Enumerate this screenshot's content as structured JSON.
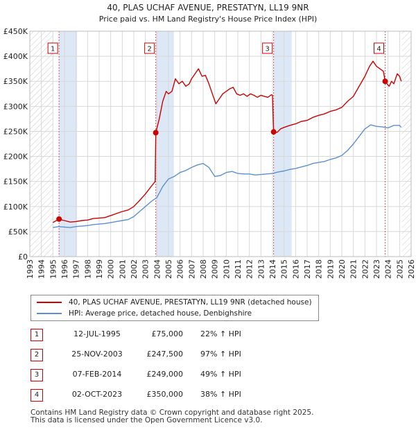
{
  "chart_data": {
    "type": "line",
    "title": "40, PLAS UCHAF AVENUE, PRESTATYN, LL19 9NR",
    "subtitle": "Price paid vs. HM Land Registry's House Price Index (HPI)",
    "xlim": [
      1993,
      2026
    ],
    "ylim": [
      0,
      450000
    ],
    "x_ticks": [
      1993,
      1994,
      1995,
      1996,
      1997,
      1998,
      1999,
      2000,
      2001,
      2002,
      2003,
      2004,
      2005,
      2006,
      2007,
      2008,
      2009,
      2010,
      2011,
      2012,
      2013,
      2014,
      2015,
      2016,
      2017,
      2018,
      2019,
      2020,
      2021,
      2022,
      2023,
      2024,
      2025,
      2026
    ],
    "y_ticks": [
      {
        "value": 0,
        "label": "£0"
      },
      {
        "value": 50000,
        "label": "£50K"
      },
      {
        "value": 100000,
        "label": "£100K"
      },
      {
        "value": 150000,
        "label": "£150K"
      },
      {
        "value": 200000,
        "label": "£200K"
      },
      {
        "value": 250000,
        "label": "£250K"
      },
      {
        "value": 300000,
        "label": "£300K"
      },
      {
        "value": 350000,
        "label": "£350K"
      },
      {
        "value": 400000,
        "label": "£400K"
      },
      {
        "value": 450000,
        "label": "£450K"
      }
    ],
    "data_start": 1995.0,
    "data_end": 2025.2,
    "series": [
      {
        "name": "40, PLAS UCHAF AVENUE, PRESTATYN, LL19 9NR (detached house)",
        "color": "#cc0000",
        "points": [
          [
            1995.0,
            68000
          ],
          [
            1995.53,
            75000
          ],
          [
            1995.8,
            73000
          ],
          [
            1996.0,
            72000
          ],
          [
            1996.5,
            69000
          ],
          [
            1997.0,
            70000
          ],
          [
            1997.5,
            72000
          ],
          [
            1998.0,
            73000
          ],
          [
            1998.5,
            76000
          ],
          [
            1999.0,
            77000
          ],
          [
            1999.5,
            78000
          ],
          [
            2000.0,
            82000
          ],
          [
            2000.5,
            86000
          ],
          [
            2001.0,
            90000
          ],
          [
            2001.5,
            93000
          ],
          [
            2002.0,
            100000
          ],
          [
            2002.5,
            112000
          ],
          [
            2003.0,
            125000
          ],
          [
            2003.5,
            140000
          ],
          [
            2003.85,
            150000
          ],
          [
            2003.9,
            247500
          ],
          [
            2004.2,
            275000
          ],
          [
            2004.5,
            310000
          ],
          [
            2004.8,
            330000
          ],
          [
            2005.0,
            325000
          ],
          [
            2005.3,
            330000
          ],
          [
            2005.6,
            355000
          ],
          [
            2005.9,
            345000
          ],
          [
            2006.2,
            350000
          ],
          [
            2006.5,
            340000
          ],
          [
            2006.8,
            345000
          ],
          [
            2007.0,
            355000
          ],
          [
            2007.3,
            365000
          ],
          [
            2007.6,
            375000
          ],
          [
            2007.9,
            360000
          ],
          [
            2008.2,
            362000
          ],
          [
            2008.5,
            345000
          ],
          [
            2008.8,
            325000
          ],
          [
            2009.1,
            305000
          ],
          [
            2009.4,
            315000
          ],
          [
            2009.7,
            325000
          ],
          [
            2010.0,
            330000
          ],
          [
            2010.3,
            335000
          ],
          [
            2010.6,
            338000
          ],
          [
            2010.9,
            325000
          ],
          [
            2011.2,
            322000
          ],
          [
            2011.5,
            325000
          ],
          [
            2011.8,
            320000
          ],
          [
            2012.1,
            325000
          ],
          [
            2012.4,
            322000
          ],
          [
            2012.7,
            318000
          ],
          [
            2013.0,
            322000
          ],
          [
            2013.3,
            320000
          ],
          [
            2013.6,
            318000
          ],
          [
            2013.9,
            323000
          ],
          [
            2014.0,
            322000
          ],
          [
            2014.1,
            249000
          ],
          [
            2014.4,
            248000
          ],
          [
            2014.7,
            255000
          ],
          [
            2015.0,
            258000
          ],
          [
            2015.5,
            262000
          ],
          [
            2016.0,
            265000
          ],
          [
            2016.5,
            270000
          ],
          [
            2017.0,
            272000
          ],
          [
            2017.5,
            278000
          ],
          [
            2018.0,
            282000
          ],
          [
            2018.5,
            285000
          ],
          [
            2019.0,
            290000
          ],
          [
            2019.5,
            293000
          ],
          [
            2020.0,
            298000
          ],
          [
            2020.5,
            310000
          ],
          [
            2021.0,
            320000
          ],
          [
            2021.5,
            340000
          ],
          [
            2022.0,
            360000
          ],
          [
            2022.4,
            380000
          ],
          [
            2022.7,
            390000
          ],
          [
            2023.0,
            380000
          ],
          [
            2023.3,
            375000
          ],
          [
            2023.6,
            370000
          ],
          [
            2023.75,
            350000
          ],
          [
            2023.9,
            345000
          ],
          [
            2024.1,
            340000
          ],
          [
            2024.3,
            350000
          ],
          [
            2024.5,
            345000
          ],
          [
            2024.8,
            365000
          ],
          [
            2025.0,
            360000
          ],
          [
            2025.15,
            350000
          ]
        ]
      },
      {
        "name": "HPI: Average price, detached house, Denbighshire",
        "color": "#5b8fd1",
        "points": [
          [
            1995.0,
            58000
          ],
          [
            1995.5,
            60000
          ],
          [
            1996.0,
            59000
          ],
          [
            1996.5,
            58000
          ],
          [
            1997.0,
            60000
          ],
          [
            1997.5,
            61000
          ],
          [
            1998.0,
            62000
          ],
          [
            1998.5,
            64000
          ],
          [
            1999.0,
            65000
          ],
          [
            1999.5,
            66000
          ],
          [
            2000.0,
            68000
          ],
          [
            2000.5,
            70000
          ],
          [
            2001.0,
            72000
          ],
          [
            2001.5,
            74000
          ],
          [
            2002.0,
            80000
          ],
          [
            2002.5,
            90000
          ],
          [
            2003.0,
            100000
          ],
          [
            2003.5,
            110000
          ],
          [
            2004.0,
            118000
          ],
          [
            2004.5,
            140000
          ],
          [
            2005.0,
            155000
          ],
          [
            2005.5,
            160000
          ],
          [
            2006.0,
            168000
          ],
          [
            2006.5,
            172000
          ],
          [
            2007.0,
            178000
          ],
          [
            2007.5,
            183000
          ],
          [
            2008.0,
            186000
          ],
          [
            2008.5,
            178000
          ],
          [
            2009.0,
            160000
          ],
          [
            2009.5,
            162000
          ],
          [
            2010.0,
            168000
          ],
          [
            2010.5,
            170000
          ],
          [
            2011.0,
            166000
          ],
          [
            2011.5,
            165000
          ],
          [
            2012.0,
            165000
          ],
          [
            2012.5,
            163000
          ],
          [
            2013.0,
            164000
          ],
          [
            2013.5,
            165000
          ],
          [
            2014.0,
            166000
          ],
          [
            2014.5,
            169000
          ],
          [
            2015.0,
            171000
          ],
          [
            2015.5,
            174000
          ],
          [
            2016.0,
            176000
          ],
          [
            2016.5,
            179000
          ],
          [
            2017.0,
            182000
          ],
          [
            2017.5,
            186000
          ],
          [
            2018.0,
            188000
          ],
          [
            2018.5,
            190000
          ],
          [
            2019.0,
            194000
          ],
          [
            2019.5,
            197000
          ],
          [
            2020.0,
            202000
          ],
          [
            2020.5,
            212000
          ],
          [
            2021.0,
            225000
          ],
          [
            2021.5,
            240000
          ],
          [
            2022.0,
            255000
          ],
          [
            2022.5,
            263000
          ],
          [
            2023.0,
            260000
          ],
          [
            2023.5,
            259000
          ],
          [
            2024.0,
            257000
          ],
          [
            2024.5,
            262000
          ],
          [
            2025.0,
            262000
          ],
          [
            2025.15,
            258000
          ]
        ]
      }
    ],
    "sales": [
      {
        "num": "1",
        "x": 1995.53,
        "value": 75000,
        "date": "12-JUL-1995",
        "price": "£75,000",
        "hpi": "22% ↑ HPI"
      },
      {
        "num": "2",
        "x": 2003.9,
        "value": 247500,
        "date": "25-NOV-2003",
        "price": "£247,500",
        "hpi": "97% ↑ HPI"
      },
      {
        "num": "3",
        "x": 2014.1,
        "value": 249000,
        "date": "07-FEB-2014",
        "price": "£249,000",
        "hpi": "49% ↑ HPI"
      },
      {
        "num": "4",
        "x": 2023.75,
        "value": 350000,
        "date": "02-OCT-2023",
        "price": "£350,000",
        "hpi": "38% ↑ HPI"
      }
    ]
  },
  "legend": {
    "series1": "40, PLAS UCHAF AVENUE, PRESTATYN, LL19 9NR (detached house)",
    "series2": "HPI: Average price, detached house, Denbighshire"
  },
  "transactions": [
    {
      "num": "1",
      "date": "12-JUL-1995",
      "price": "£75,000",
      "hpi": "22% ↑ HPI"
    },
    {
      "num": "2",
      "date": "25-NOV-2003",
      "price": "£247,500",
      "hpi": "97% ↑ HPI"
    },
    {
      "num": "3",
      "date": "07-FEB-2014",
      "price": "£249,000",
      "hpi": "49% ↑ HPI"
    },
    {
      "num": "4",
      "date": "02-OCT-2023",
      "price": "£350,000",
      "hpi": "38% ↑ HPI"
    }
  ],
  "footer": {
    "line1": "Contains HM Land Registry data © Crown copyright and database right 2025.",
    "line2": "This data is licensed under the Open Government Licence v3.0."
  },
  "colors": {
    "property": "#cc0000",
    "hpi": "#5b8fd1",
    "highlight": "#dde8f6",
    "grid": "#d8d8d8"
  }
}
